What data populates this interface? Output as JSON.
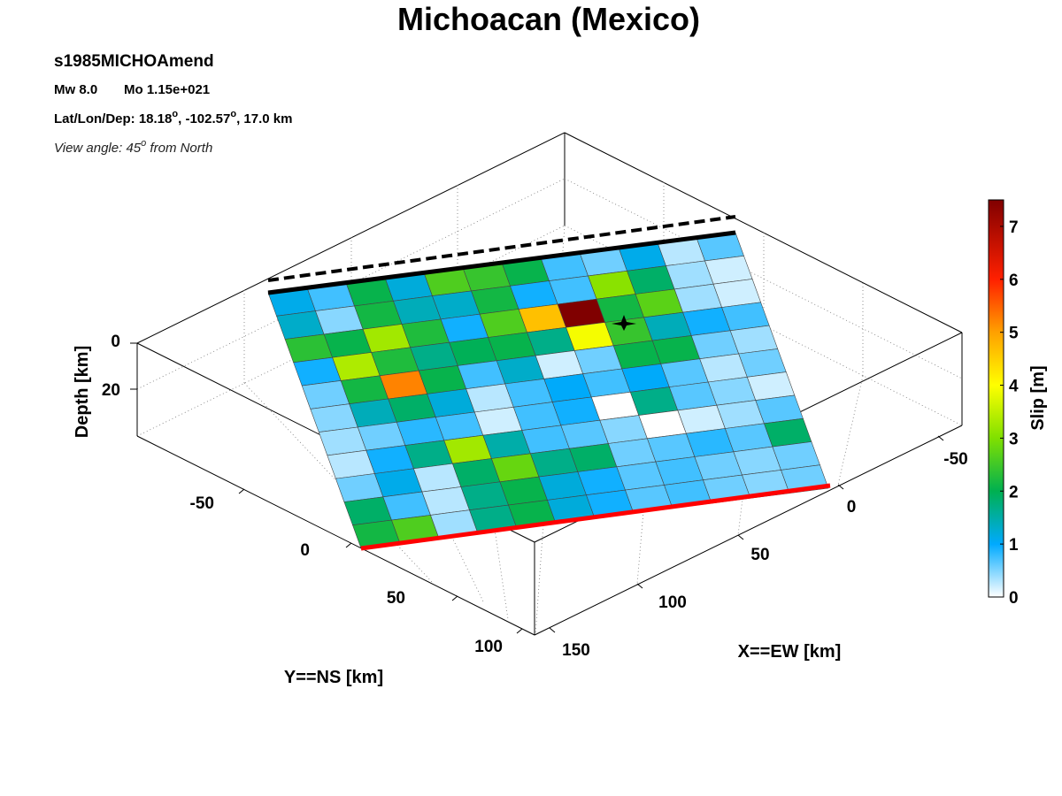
{
  "chart_data": {
    "type": "heatmap",
    "title": "Michoacan (Mexico)",
    "event_id": "s1985MICHOAmend",
    "magnitude_text": "Mw 8.0",
    "moment_text": "Mo 1.15e+021",
    "location_prefix": "Lat/Lon/Dep: ",
    "lat": "18.18",
    "lon": "-102.57",
    "depth_text": "17.0 km",
    "view_text_prefix": "View angle:  ",
    "view_angle": "45",
    "view_text_suffix": " from North",
    "xlabel": "X==EW [km]",
    "ylabel": "Y==NS [km]",
    "zlabel": "Depth [km]",
    "colorbar_label": "Slip [m]",
    "colorbar_range": [
      0,
      7.5
    ],
    "colorbar_ticks": [
      "0",
      "1",
      "2",
      "3",
      "4",
      "5",
      "6",
      "7"
    ],
    "x_ticks": [
      "-50",
      "0",
      "50",
      "100",
      "150"
    ],
    "y_ticks": [
      "-50",
      "0",
      "50",
      "100"
    ],
    "z_ticks": [
      "0",
      "20"
    ],
    "grid": true,
    "colormap": [
      "#ffffff",
      "#00aaff",
      "#00b050",
      "#80e000",
      "#ffff00",
      "#ffa000",
      "#ff2000",
      "#800000"
    ],
    "hypocenter_marker": "star",
    "fault_top_color": "#000000",
    "fault_bottom_color": "#ff0000",
    "slip_grid": [
      [
        1.2,
        0.8,
        2.2,
        1.3,
        2.8,
        2.6,
        2.2,
        0.8,
        0.6,
        1.2,
        0.3,
        0.7
      ],
      [
        1.4,
        0.5,
        2.3,
        1.5,
        1.4,
        2.3,
        1.0,
        0.8,
        3.3,
        2.0,
        0.4,
        0.2
      ],
      [
        2.5,
        2.2,
        3.5,
        2.4,
        1.0,
        2.8,
        5.0,
        7.5,
        2.3,
        2.9,
        0.4,
        0.2
      ],
      [
        1.0,
        3.6,
        2.4,
        1.8,
        2.1,
        2.2,
        1.8,
        4.2,
        2.6,
        1.5,
        1.0,
        0.8
      ],
      [
        0.6,
        2.3,
        5.6,
        2.2,
        0.8,
        1.4,
        0.2,
        0.6,
        2.2,
        2.2,
        0.6,
        0.4
      ],
      [
        0.5,
        1.5,
        2.0,
        1.3,
        0.3,
        0.8,
        1.1,
        0.8,
        1.1,
        0.7,
        0.3,
        0.6
      ],
      [
        0.4,
        0.6,
        0.9,
        0.8,
        0.2,
        0.8,
        1.0,
        0.0,
        1.8,
        0.7,
        0.5,
        0.2
      ],
      [
        0.3,
        1.0,
        1.8,
        3.5,
        1.6,
        0.8,
        0.7,
        0.5,
        0.0,
        0.2,
        0.4,
        0.7
      ],
      [
        0.6,
        1.2,
        0.3,
        2.0,
        3.0,
        1.8,
        2.0,
        0.6,
        0.7,
        0.9,
        0.7,
        2.0
      ],
      [
        2.0,
        0.8,
        0.3,
        1.8,
        2.2,
        1.3,
        1.0,
        0.7,
        0.8,
        0.6,
        0.5,
        0.6
      ],
      [
        2.3,
        2.8,
        0.4,
        1.8,
        2.2,
        1.3,
        1.0,
        0.7,
        0.8,
        0.6,
        0.5,
        0.6
      ]
    ]
  }
}
